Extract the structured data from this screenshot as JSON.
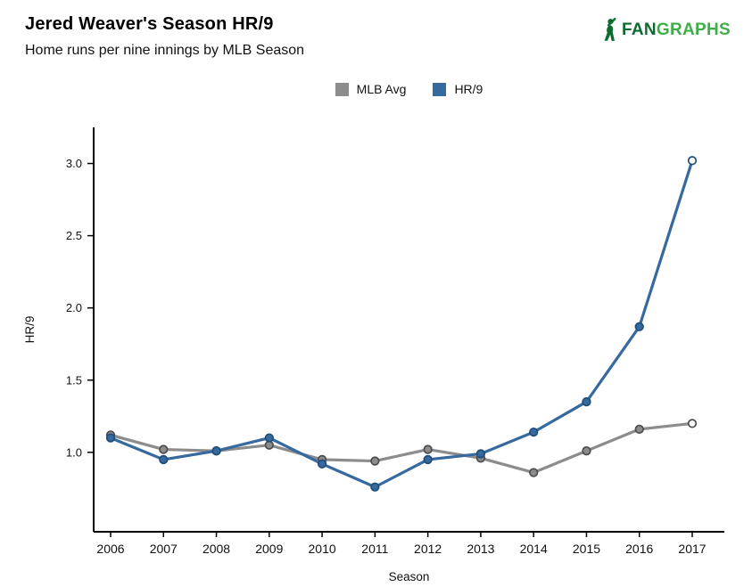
{
  "header": {
    "title": "Jered Weaver's Season HR/9",
    "subtitle": "Home runs per nine innings by MLB Season"
  },
  "logo": {
    "fan": "FAN",
    "graphs": "GRAPHS",
    "fan_color": "#0e6a31",
    "graphs_color": "#3fae49"
  },
  "legend": {
    "items": [
      {
        "label": "MLB Avg",
        "color": "#8c8c8c"
      },
      {
        "label": "HR/9",
        "color": "#36699e"
      }
    ]
  },
  "chart_data": {
    "type": "line",
    "x": [
      2006,
      2007,
      2008,
      2009,
      2010,
      2011,
      2012,
      2013,
      2014,
      2015,
      2016,
      2017
    ],
    "series": [
      {
        "name": "MLB Avg",
        "color": "#8c8c8c",
        "marker_stroke": "#4d4d4d",
        "values": [
          1.12,
          1.02,
          1.01,
          1.05,
          0.95,
          0.94,
          1.02,
          0.96,
          0.86,
          1.01,
          1.16,
          1.2
        ]
      },
      {
        "name": "HR/9",
        "color": "#36699e",
        "marker_stroke": "#1f4e79",
        "values": [
          1.1,
          0.95,
          1.01,
          1.1,
          0.92,
          0.76,
          0.95,
          0.99,
          1.14,
          1.35,
          1.87,
          3.02
        ]
      }
    ],
    "title": "Jered Weaver's Season HR/9",
    "xlabel": "Season",
    "ylabel": "HR/9",
    "ylim": [
      0.45,
      3.25
    ],
    "yticks": [
      1.0,
      1.5,
      2.0,
      2.5,
      3.0
    ],
    "grid": false,
    "legend_position": "top-center",
    "last_point_open": true,
    "axis_color": "#000000"
  }
}
